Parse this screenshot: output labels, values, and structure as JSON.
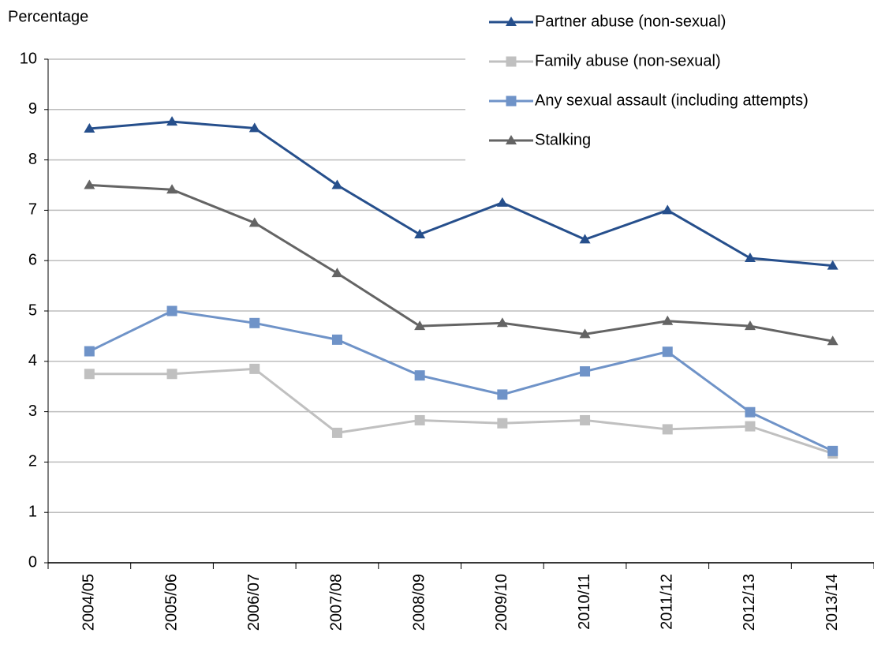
{
  "chart_data": {
    "type": "line",
    "y_label": "Percentage",
    "categories": [
      "2004/05",
      "2005/06",
      "2006/07",
      "2007/08",
      "2008/09",
      "2009/10",
      "2010/11",
      "2011/12",
      "2012/13",
      "2013/14"
    ],
    "series": [
      {
        "name": "Partner abuse (non-sexual)",
        "color": "#264f8c",
        "marker": "triangle",
        "values": [
          8.62,
          8.76,
          8.63,
          7.5,
          6.52,
          7.15,
          6.42,
          7.0,
          6.05,
          5.9
        ]
      },
      {
        "name": "Family abuse (non-sexual)",
        "color": "#c0c0c0",
        "marker": "square",
        "values": [
          3.75,
          3.75,
          3.85,
          2.58,
          2.83,
          2.77,
          2.83,
          2.65,
          2.71,
          2.17
        ]
      },
      {
        "name": "Any sexual assault (including attempts)",
        "color": "#6f93c8",
        "marker": "square",
        "values": [
          4.2,
          5.0,
          4.76,
          4.43,
          3.72,
          3.34,
          3.8,
          4.19,
          2.99,
          2.22
        ]
      },
      {
        "name": "Stalking",
        "color": "#646464",
        "marker": "triangle",
        "values": [
          7.5,
          7.41,
          6.75,
          5.75,
          4.7,
          4.76,
          4.54,
          4.8,
          4.7,
          4.4
        ]
      }
    ],
    "ylim": [
      0,
      10
    ],
    "yticks": [
      0,
      1,
      2,
      3,
      4,
      5,
      6,
      7,
      8,
      9,
      10
    ],
    "grid": true,
    "legend": "top-right"
  }
}
